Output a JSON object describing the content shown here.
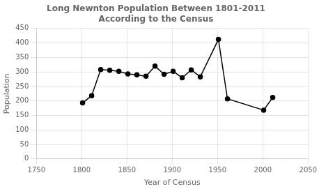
{
  "chart_data": {
    "type": "line",
    "title": "Long Newnton Population Between 1801-2011",
    "subtitle": "According to the Census",
    "x_label": "Year of Census",
    "y_label": "Population",
    "x": [
      1801,
      1811,
      1821,
      1831,
      1841,
      1851,
      1861,
      1871,
      1881,
      1891,
      1901,
      1911,
      1921,
      1931,
      1951,
      1961,
      2001,
      2011
    ],
    "values": [
      193,
      218,
      308,
      306,
      302,
      293,
      290,
      285,
      320,
      292,
      302,
      280,
      307,
      283,
      412,
      207,
      168,
      212
    ],
    "color": "#000000",
    "marker": "circle",
    "xlim": [
      1750,
      2050
    ],
    "ylim": [
      0,
      450
    ],
    "xticks": [
      1750,
      1800,
      1850,
      1900,
      1950,
      2000,
      2050
    ],
    "yticks": [
      0,
      50,
      100,
      150,
      200,
      250,
      300,
      350,
      400,
      450
    ],
    "grid": true
  }
}
